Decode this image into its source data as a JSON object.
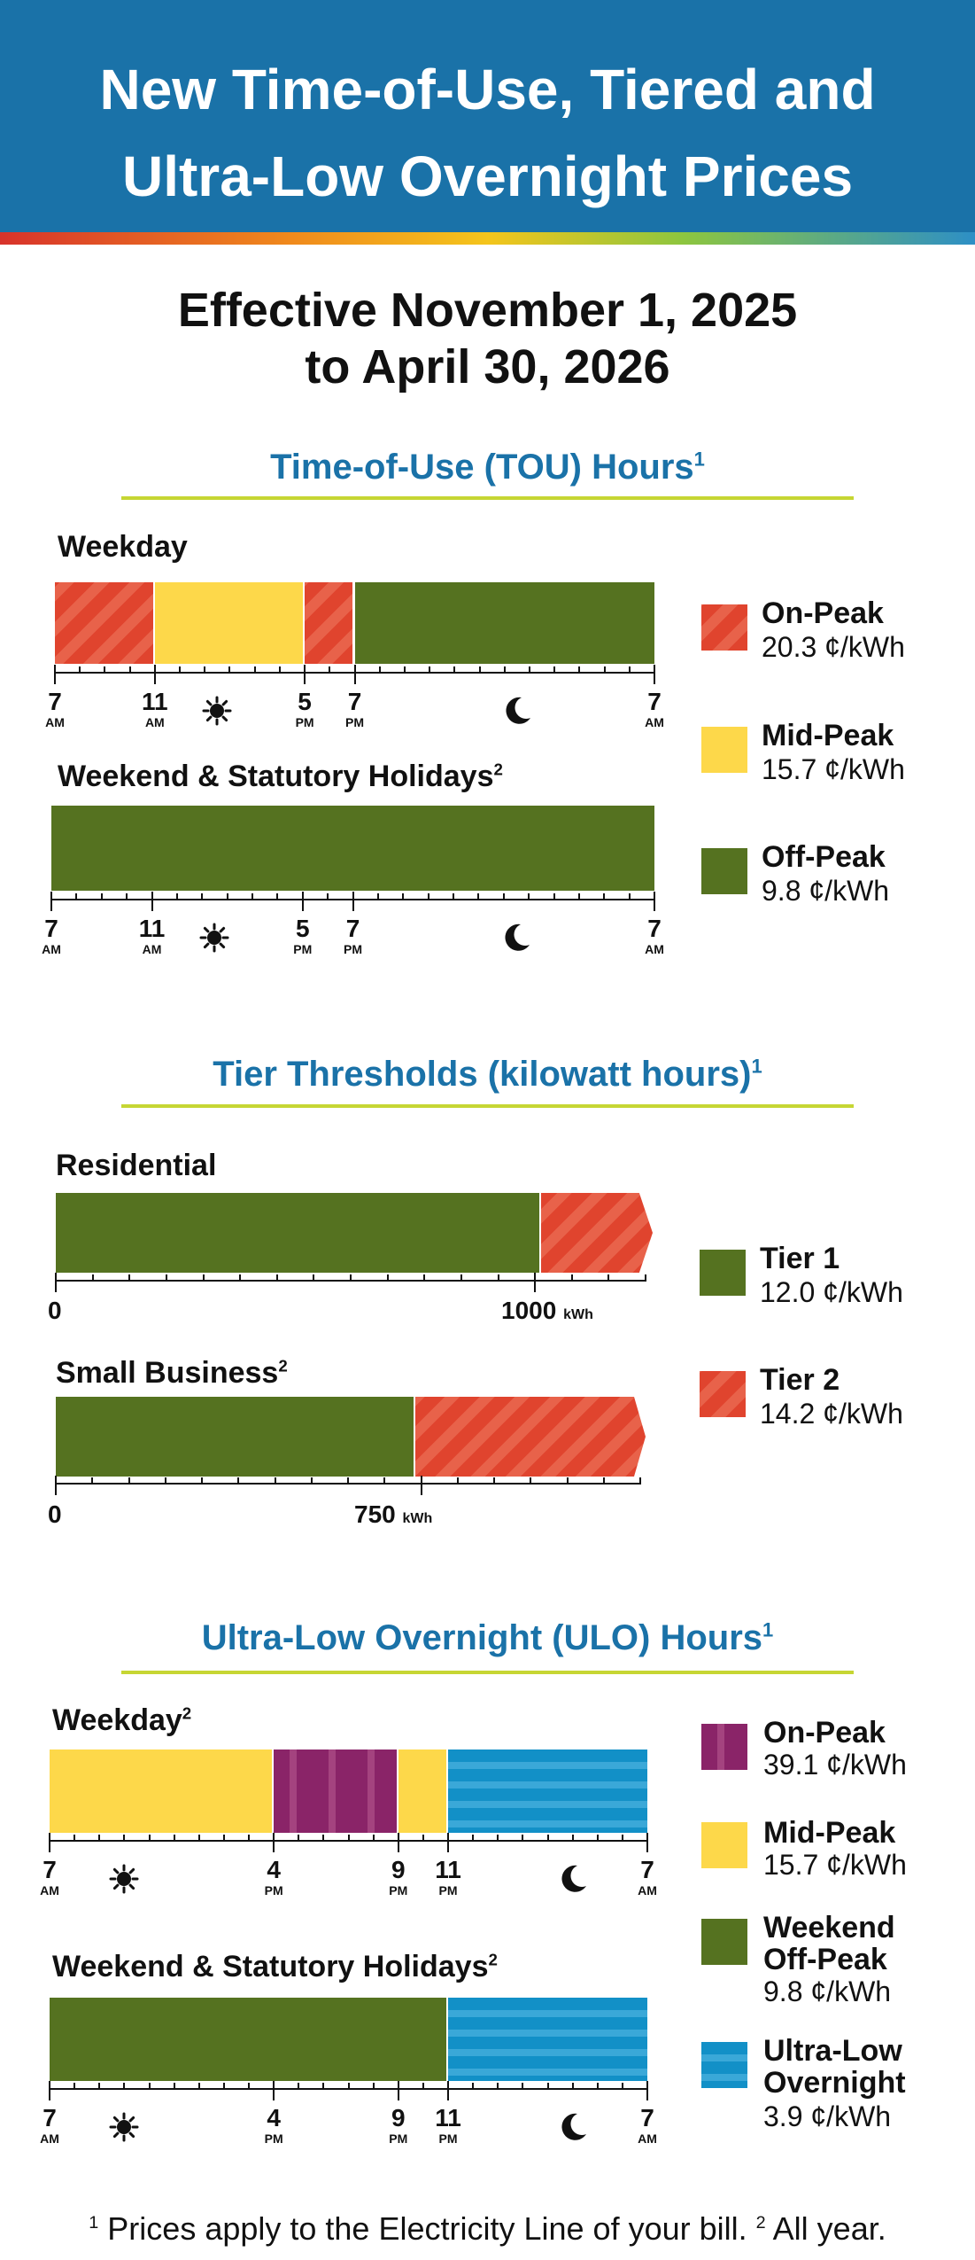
{
  "header": {
    "title_line1": "New Time-of-Use, Tiered and",
    "title_line2": "Ultra-Low Overnight Prices"
  },
  "effective": {
    "line1": "Effective November 1, 2025",
    "line2": "to April 30, 2026"
  },
  "tou": {
    "title": "Time-of-Use (TOU) Hours",
    "footnote_mark": "1",
    "weekday_label": "Weekday",
    "weekend_label": "Weekend & Statutory Holidays",
    "weekend_mark": "2",
    "ticks": [
      {
        "n": "7",
        "s": "AM"
      },
      {
        "n": "11",
        "s": "AM"
      },
      {
        "n": "5",
        "s": "PM"
      },
      {
        "n": "7",
        "s": "PM"
      },
      {
        "n": "7",
        "s": "AM"
      }
    ],
    "weekday_schedule": [
      {
        "from": 7,
        "to": 11,
        "period": "On-Peak"
      },
      {
        "from": 11,
        "to": 17,
        "period": "Mid-Peak"
      },
      {
        "from": 17,
        "to": 19,
        "period": "On-Peak"
      },
      {
        "from": 19,
        "to": 31,
        "period": "Off-Peak"
      }
    ],
    "weekend_schedule": [
      {
        "from": 7,
        "to": 31,
        "period": "Off-Peak"
      }
    ],
    "legend": [
      {
        "name": "On-Peak",
        "price": "20.3 ¢/kWh",
        "color": "#e0442e"
      },
      {
        "name": "Mid-Peak",
        "price": "15.7 ¢/kWh",
        "color": "#fdd84a"
      },
      {
        "name": "Off-Peak",
        "price": "9.8 ¢/kWh",
        "color": "#557220"
      }
    ]
  },
  "tier": {
    "title": "Tier Thresholds (kilowatt hours)",
    "footnote_mark": "1",
    "residential_label": "Residential",
    "residential_threshold": "1000",
    "small_business_label": "Small Business",
    "small_business_mark": "2",
    "small_business_threshold": "750",
    "zero": "0",
    "unit": "kWh",
    "legend": [
      {
        "name": "Tier 1",
        "price": "12.0 ¢/kWh",
        "color": "#557220"
      },
      {
        "name": "Tier 2",
        "price": "14.2 ¢/kWh",
        "color": "#e0442e"
      }
    ]
  },
  "ulo": {
    "title": "Ultra-Low Overnight (ULO) Hours",
    "footnote_mark": "1",
    "weekday_label": "Weekday",
    "weekday_mark": "2",
    "weekend_label": "Weekend & Statutory Holidays",
    "weekend_mark": "2",
    "ticks": [
      {
        "n": "7",
        "s": "AM"
      },
      {
        "n": "4",
        "s": "PM"
      },
      {
        "n": "9",
        "s": "PM"
      },
      {
        "n": "11",
        "s": "PM"
      },
      {
        "n": "7",
        "s": "AM"
      }
    ],
    "weekday_schedule": [
      {
        "from": 7,
        "to": 16,
        "period": "Mid-Peak"
      },
      {
        "from": 16,
        "to": 21,
        "period": "On-Peak"
      },
      {
        "from": 21,
        "to": 23,
        "period": "Mid-Peak"
      },
      {
        "from": 23,
        "to": 31,
        "period": "Ultra-Low Overnight"
      }
    ],
    "weekend_schedule": [
      {
        "from": 7,
        "to": 23,
        "period": "Weekend Off-Peak"
      },
      {
        "from": 23,
        "to": 31,
        "period": "Ultra-Low Overnight"
      }
    ],
    "legend": [
      {
        "name": "On-Peak",
        "price": "39.1 ¢/kWh",
        "color": "#8a2468"
      },
      {
        "name": "Mid-Peak",
        "price": "15.7 ¢/kWh",
        "color": "#fdd84a"
      },
      {
        "name": "Weekend Off-Peak",
        "price": "9.8 ¢/kWh",
        "color": "#557220"
      },
      {
        "name": "Ultra-Low Overnight",
        "price": "3.9 ¢/kWh",
        "color": "#1290c7"
      }
    ]
  },
  "footnote": {
    "mark1": "1",
    "text1": " Prices apply to the Electricity Line of your bill. ",
    "mark2": "2",
    "text2": " All year."
  },
  "icons": {
    "day": "sun-icon",
    "night": "moon-icon"
  }
}
